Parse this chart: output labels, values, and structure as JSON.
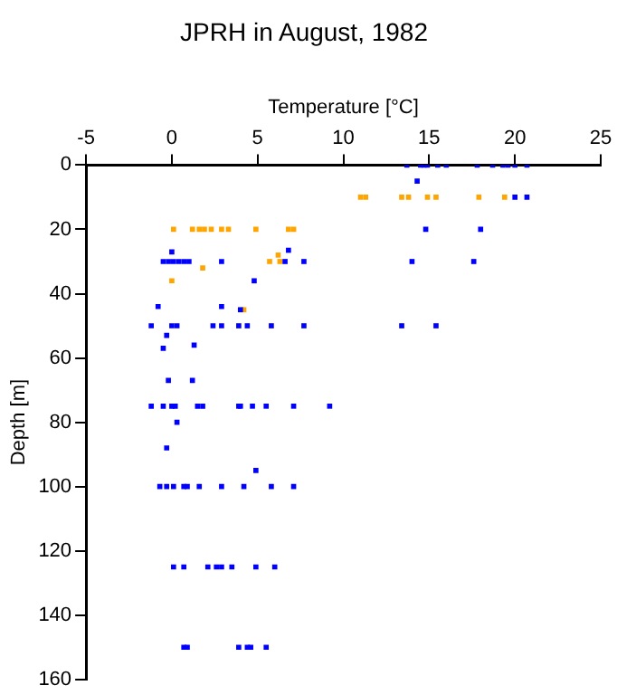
{
  "chart_data": {
    "type": "scatter",
    "title": "JPRH in August, 1982",
    "xlabel": "Temperature [°C]",
    "ylabel": "Depth [m]",
    "xlim": [
      -5,
      25
    ],
    "xticks": [
      -5,
      0,
      5,
      10,
      15,
      20,
      25
    ],
    "ylim": [
      160,
      0
    ],
    "yticks": [
      0,
      20,
      40,
      60,
      80,
      100,
      120,
      140,
      160
    ],
    "grid": false,
    "legend": false,
    "marker": "square",
    "series": [
      {
        "color": "#0000ff",
        "x": [
          13.7,
          14.5,
          14.7,
          14.9,
          15.5,
          16,
          17.8,
          18.7,
          19.3,
          19.6,
          20,
          20.7,
          14.3,
          20,
          20.7,
          14.8,
          18,
          6.8,
          0,
          -0.5,
          -0.2,
          0.1,
          0.4,
          0.7,
          1,
          2.9,
          6.6,
          7.7,
          14,
          17.6,
          4.8,
          -0.8,
          2.9,
          4,
          -1.2,
          0,
          0.3,
          2.4,
          2.9,
          3.9,
          4.4,
          5.8,
          7.7,
          13.4,
          15.4,
          -0.3,
          -0.5,
          1.3,
          -0.2,
          1.2,
          -1.2,
          -0.5,
          0,
          0.2,
          1.5,
          1.8,
          3.9,
          4,
          4.7,
          5.5,
          7.1,
          9.2,
          0.3,
          -0.3,
          4.9,
          -0.7,
          -0.3,
          0.1,
          0.7,
          0.9,
          1.6,
          2.9,
          4.2,
          5.8,
          7.1,
          0.1,
          0.7,
          2.1,
          2.6,
          2.9,
          3.5,
          4.9,
          6,
          0.7,
          0.9,
          3.9,
          4.4,
          4.6,
          5.5
        ],
        "values": [
          0,
          0,
          0,
          0,
          0,
          0,
          0,
          0,
          0,
          0,
          0,
          0,
          5,
          10,
          10,
          20,
          20,
          26.5,
          27,
          30,
          30,
          30,
          30,
          30,
          30,
          30,
          30,
          30,
          30,
          30,
          36,
          44,
          44,
          45,
          50,
          50,
          50,
          50,
          50,
          50,
          50,
          50,
          50,
          50,
          50,
          53,
          57,
          56,
          67,
          67,
          75,
          75,
          75,
          75,
          75,
          75,
          75,
          75,
          75,
          75,
          75,
          75,
          80,
          88,
          95,
          100,
          100,
          100,
          100,
          100,
          100,
          100,
          100,
          100,
          100,
          125,
          125,
          125,
          125,
          125,
          125,
          125,
          125,
          150,
          150,
          150,
          150,
          150,
          150
        ]
      },
      {
        "color": "#ffa500",
        "x": [
          11,
          11.3,
          13.4,
          13.8,
          14.9,
          15.4,
          17.9,
          19.4,
          0.1,
          1.2,
          1.6,
          1.9,
          2.3,
          2.9,
          3.3,
          4.9,
          6.8,
          7.1,
          6.2,
          5.7,
          6.3,
          1.8,
          0,
          4.2
        ],
        "values": [
          10,
          10,
          10,
          10,
          10,
          10,
          10,
          10,
          20,
          20,
          20,
          20,
          20,
          20,
          20,
          20,
          20,
          20,
          28,
          30,
          30,
          32,
          36,
          45
        ]
      }
    ]
  }
}
